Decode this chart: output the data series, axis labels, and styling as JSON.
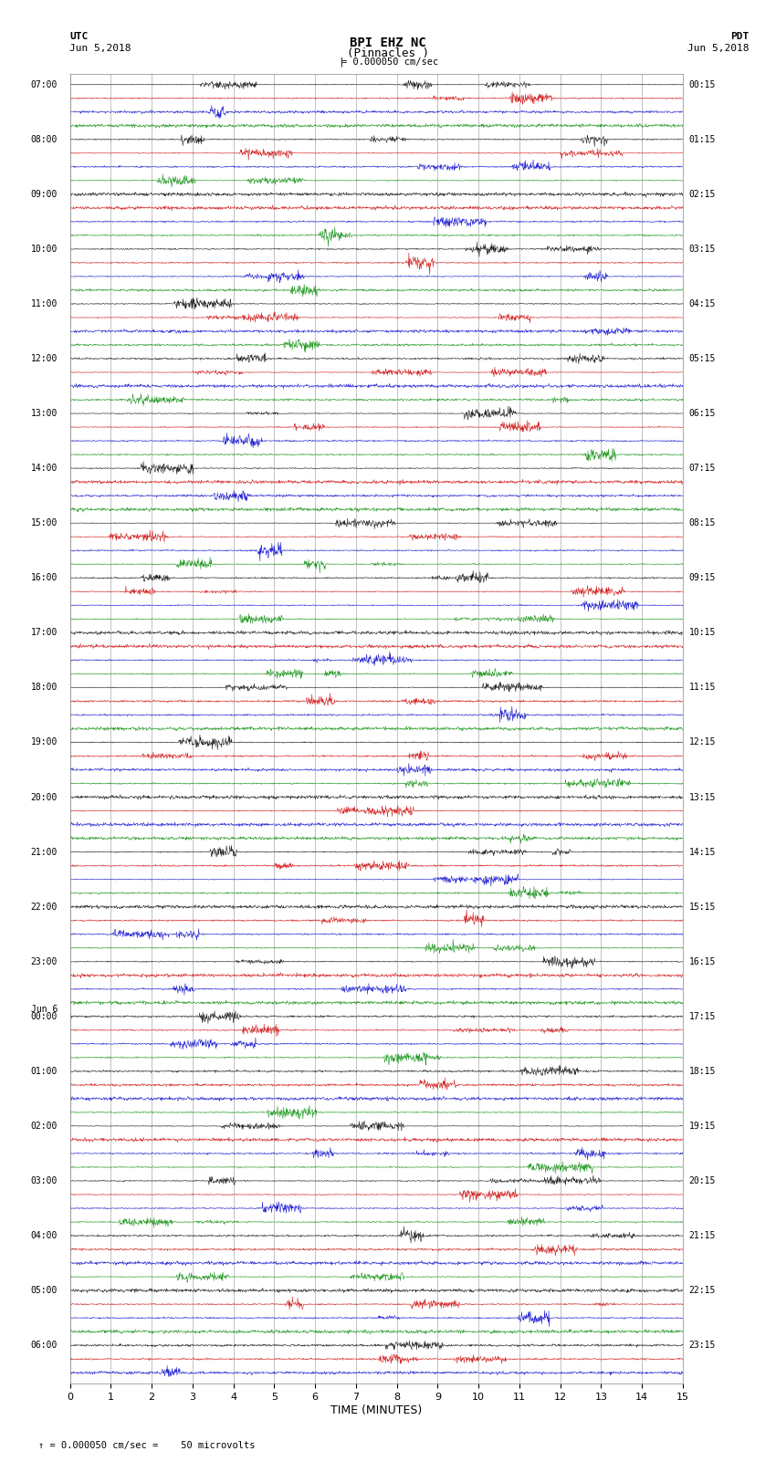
{
  "title_line1": "BPI EHZ NC",
  "title_line2": "(Pinnacles )",
  "scale_text": "= 0.000050 cm/sec",
  "utc_label": "UTC",
  "utc_date": "Jun 5,2018",
  "pdt_label": "PDT",
  "pdt_date": "Jun 5,2018",
  "jun6_label": "Jun 6",
  "xlabel": "TIME (MINUTES)",
  "footnote": "= 0.000050 cm/sec =    50 microvolts",
  "bg_color": "#ffffff",
  "grid_color": "#aaaaaa",
  "trace_colors": [
    "#000000",
    "#cc0000",
    "#0000cc",
    "#008800"
  ],
  "left_times": [
    "07:00",
    "",
    "",
    "",
    "08:00",
    "",
    "",
    "",
    "09:00",
    "",
    "",
    "",
    "10:00",
    "",
    "",
    "",
    "11:00",
    "",
    "",
    "",
    "12:00",
    "",
    "",
    "",
    "13:00",
    "",
    "",
    "",
    "14:00",
    "",
    "",
    "",
    "15:00",
    "",
    "",
    "",
    "16:00",
    "",
    "",
    "",
    "17:00",
    "",
    "",
    "",
    "18:00",
    "",
    "",
    "",
    "19:00",
    "",
    "",
    "",
    "20:00",
    "",
    "",
    "",
    "21:00",
    "",
    "",
    "",
    "22:00",
    "",
    "",
    "",
    "23:00",
    "",
    "",
    "",
    "00:00",
    "",
    "",
    "",
    "01:00",
    "",
    "",
    "",
    "02:00",
    "",
    "",
    "",
    "03:00",
    "",
    "",
    "",
    "04:00",
    "",
    "",
    "",
    "05:00",
    "",
    "",
    "",
    "06:00",
    "",
    ""
  ],
  "right_times": [
    "00:15",
    "",
    "",
    "",
    "01:15",
    "",
    "",
    "",
    "02:15",
    "",
    "",
    "",
    "03:15",
    "",
    "",
    "",
    "04:15",
    "",
    "",
    "",
    "05:15",
    "",
    "",
    "",
    "06:15",
    "",
    "",
    "",
    "07:15",
    "",
    "",
    "",
    "08:15",
    "",
    "",
    "",
    "09:15",
    "",
    "",
    "",
    "10:15",
    "",
    "",
    "",
    "11:15",
    "",
    "",
    "",
    "12:15",
    "",
    "",
    "",
    "13:15",
    "",
    "",
    "",
    "14:15",
    "",
    "",
    "",
    "15:15",
    "",
    "",
    "",
    "16:15",
    "",
    "",
    "",
    "17:15",
    "",
    "",
    "",
    "18:15",
    "",
    "",
    "",
    "19:15",
    "",
    "",
    "",
    "20:15",
    "",
    "",
    "",
    "21:15",
    "",
    "",
    "",
    "22:15",
    "",
    "",
    "",
    "23:15",
    "",
    ""
  ],
  "num_traces": 95,
  "minutes": 15,
  "points_per_trace": 1500,
  "noise_scale": 0.25,
  "jun6_trace_index": 68
}
